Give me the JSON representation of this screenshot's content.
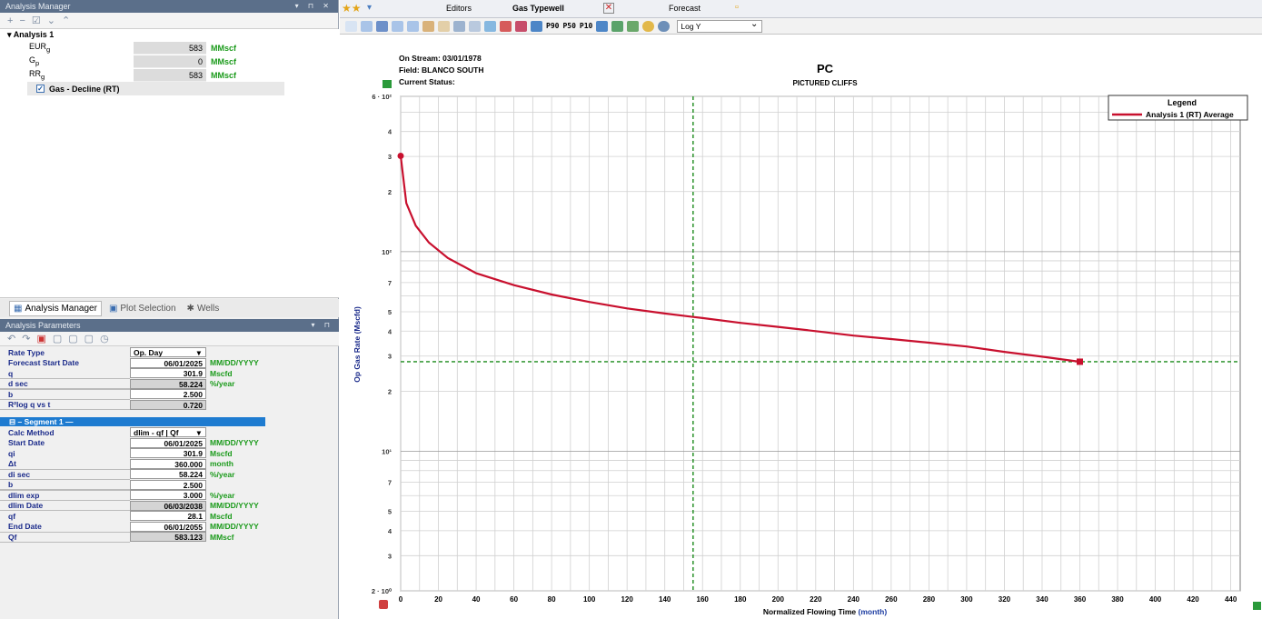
{
  "left_panel": {
    "title": "Analysis Manager",
    "toolbar_icons": [
      "add-icon",
      "remove-icon",
      "check-icon",
      "collapse-icon",
      "expand-icon"
    ],
    "analysis_name": "Analysis 1",
    "rows": [
      {
        "label": "EURg",
        "value": "583",
        "unit": "MMscf"
      },
      {
        "label": "Gp",
        "value": "0",
        "unit": "MMscf"
      },
      {
        "label": "RRg",
        "value": "583",
        "unit": "MMscf"
      }
    ],
    "decline_label": "Gas - Decline (RT)",
    "tabs": [
      "Analysis Manager",
      "Plot Selection",
      "Wells"
    ]
  },
  "params": {
    "title": "Analysis Parameters",
    "rows": [
      {
        "label": "Rate Type",
        "value": "Op. Day",
        "unit": "",
        "kind": "select"
      },
      {
        "label": "Forecast Start Date",
        "value": "06/01/2025",
        "unit": "MM/DD/YYYY",
        "kind": "input"
      },
      {
        "label": "q",
        "value": "301.9",
        "unit": "Mscfd",
        "kind": "input"
      },
      {
        "label": "d sec",
        "value": "58.224",
        "unit": "%/year",
        "kind": "gray"
      },
      {
        "label": "b",
        "value": "2.500",
        "unit": "",
        "kind": "input"
      },
      {
        "label": "R²log q vs t",
        "value": "0.720",
        "unit": "",
        "kind": "gray"
      }
    ],
    "segment_title": "Segment 1",
    "segment_rows": [
      {
        "label": "Calc Method",
        "value": "dlim - qf | Qf",
        "unit": "",
        "kind": "select"
      },
      {
        "label": "Start Date",
        "value": "06/01/2025",
        "unit": "MM/DD/YYYY",
        "kind": "input"
      },
      {
        "label": "qi",
        "value": "301.9",
        "unit": "Mscfd",
        "kind": "input"
      },
      {
        "label": "Δt",
        "value": "360.000",
        "unit": "month",
        "kind": "input"
      },
      {
        "label": "di sec",
        "value": "58.224",
        "unit": "%/year",
        "kind": "input"
      },
      {
        "label": "b",
        "value": "2.500",
        "unit": "",
        "kind": "input"
      },
      {
        "label": "dlim exp",
        "value": "3.000",
        "unit": "%/year",
        "kind": "input"
      },
      {
        "label": "dlim Date",
        "value": "06/03/2038",
        "unit": "MM/DD/YYYY",
        "kind": "gray"
      },
      {
        "label": "qf",
        "value": "28.1",
        "unit": "Mscfd",
        "kind": "input"
      },
      {
        "label": "End Date",
        "value": "06/01/2055",
        "unit": "MM/DD/YYYY",
        "kind": "input"
      },
      {
        "label": "Qf",
        "value": "583.123",
        "unit": "MMscf",
        "kind": "gray"
      }
    ]
  },
  "right_tabs": {
    "editors": "Editors",
    "typewell": "Gas Typewell",
    "forecast": "Forecast"
  },
  "toolbar": {
    "p90": "P90",
    "p50": "P50",
    "p10": "P10",
    "scale": "Log Y"
  },
  "chart_info": {
    "on_stream": "On Stream: 03/01/1978",
    "field": "Field: BLANCO SOUTH",
    "status": "Current Status:",
    "title": "PC",
    "subtitle": "PICTURED CLIFFS",
    "legend_title": "Legend",
    "xlabel": "Normalized Flowing Time",
    "xunit": "(month)",
    "ylabel": "Op Gas Rate (Mscfd)"
  },
  "chart_data": {
    "type": "line",
    "xlim": [
      0,
      445
    ],
    "ylim": [
      2,
      600
    ],
    "yscale": "log",
    "grid": true,
    "legend_position": "top-right",
    "x_ticks": [
      0,
      20,
      40,
      60,
      80,
      100,
      120,
      140,
      160,
      180,
      200,
      220,
      240,
      260,
      280,
      300,
      320,
      340,
      360,
      380,
      400,
      420,
      440
    ],
    "y_tick_labels": [
      {
        "v": 600,
        "t": "6 · 10²"
      },
      {
        "v": 400,
        "t": "4"
      },
      {
        "v": 300,
        "t": "3"
      },
      {
        "v": 200,
        "t": "2"
      },
      {
        "v": 100,
        "t": "10²"
      },
      {
        "v": 70,
        "t": "7"
      },
      {
        "v": 50,
        "t": "5"
      },
      {
        "v": 40,
        "t": "4"
      },
      {
        "v": 30,
        "t": "3"
      },
      {
        "v": 20,
        "t": "2"
      },
      {
        "v": 10,
        "t": "10¹"
      },
      {
        "v": 7,
        "t": "7"
      },
      {
        "v": 5,
        "t": "5"
      },
      {
        "v": 4,
        "t": "4"
      },
      {
        "v": 3,
        "t": "3"
      },
      {
        "v": 2,
        "t": "2 · 10⁰"
      }
    ],
    "series": [
      {
        "name": "Analysis 1 (RT) Average",
        "color": "#c8102e",
        "x": [
          0,
          3,
          8,
          15,
          25,
          40,
          60,
          80,
          100,
          120,
          140,
          160,
          180,
          200,
          220,
          240,
          260,
          280,
          300,
          320,
          340,
          360
        ],
        "y": [
          301.9,
          175,
          135,
          111,
          93,
          78,
          68,
          61,
          56,
          52,
          49,
          46.5,
          44,
          42,
          40,
          38,
          36.5,
          35,
          33.5,
          31.5,
          29.8,
          28.1
        ]
      }
    ],
    "reference_lines": {
      "vertical_x": 155,
      "horizontal_y": 28.1,
      "color": "#1a8a1a"
    }
  }
}
